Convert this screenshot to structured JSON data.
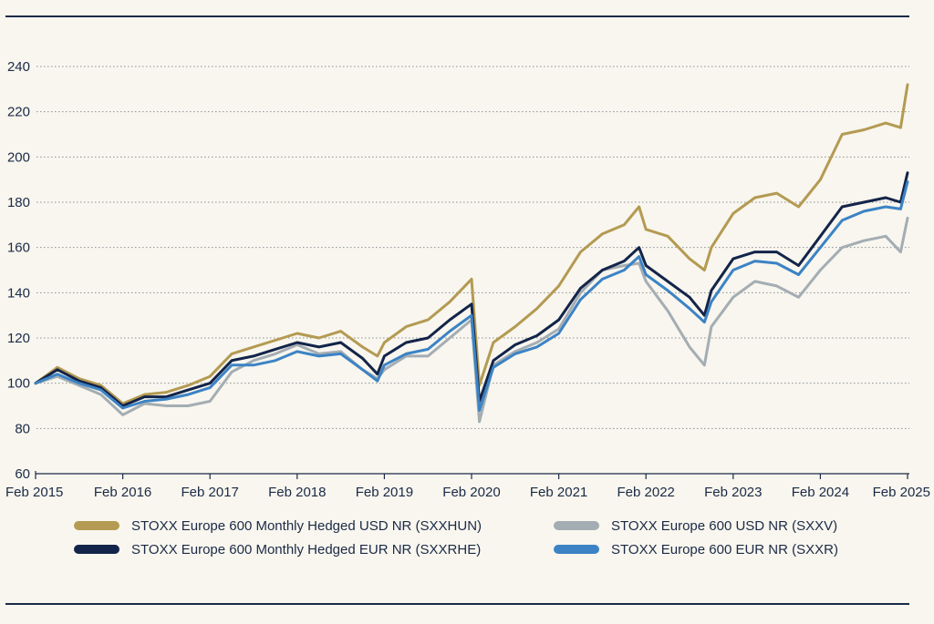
{
  "chart_data": {
    "type": "line",
    "title": "",
    "xlabel": "",
    "ylabel": "",
    "ylim": [
      60,
      240
    ],
    "yticks": [
      60,
      80,
      100,
      120,
      140,
      160,
      180,
      200,
      220,
      240
    ],
    "xticks": [
      "Feb 2015",
      "Feb 2016",
      "Feb 2017",
      "Feb 2018",
      "Feb 2019",
      "Feb 2020",
      "Feb 2021",
      "Feb 2022",
      "Feb 2023",
      "Feb 2024",
      "Feb 2025"
    ],
    "grid": "horizontal dotted",
    "legend_position": "bottom",
    "x": [
      2015.08,
      2015.33,
      2015.58,
      2015.83,
      2016.08,
      2016.33,
      2016.58,
      2016.83,
      2017.08,
      2017.33,
      2017.58,
      2017.83,
      2018.08,
      2018.33,
      2018.58,
      2018.83,
      2019.0,
      2019.08,
      2019.33,
      2019.58,
      2019.83,
      2020.08,
      2020.17,
      2020.33,
      2020.58,
      2020.83,
      2021.08,
      2021.33,
      2021.58,
      2021.83,
      2022.0,
      2022.08,
      2022.33,
      2022.58,
      2022.75,
      2022.83,
      2023.08,
      2023.33,
      2023.58,
      2023.83,
      2024.08,
      2024.33,
      2024.58,
      2024.83,
      2025.0,
      2025.08
    ],
    "series": [
      {
        "name": "STOXX Europe 600 Monthly Hedged USD NR (SXXHUN)",
        "color": "#b49a52",
        "values": [
          100,
          107,
          102,
          99,
          91,
          95,
          96,
          99,
          103,
          113,
          116,
          119,
          122,
          120,
          123,
          116,
          112,
          118,
          125,
          128,
          136,
          146,
          99,
          118,
          125,
          133,
          143,
          158,
          166,
          170,
          178,
          168,
          165,
          155,
          150,
          160,
          175,
          182,
          184,
          178,
          190,
          210,
          212,
          215,
          213,
          232
        ]
      },
      {
        "name": "STOXX Europe 600 USD NR (SXXV)",
        "color": "#a4adb3",
        "values": [
          100,
          103,
          99,
          95,
          86,
          91,
          90,
          90,
          92,
          105,
          110,
          113,
          117,
          113,
          114,
          106,
          102,
          106,
          112,
          112,
          120,
          128,
          83,
          108,
          114,
          118,
          124,
          140,
          150,
          152,
          153,
          145,
          132,
          116,
          108,
          125,
          138,
          145,
          143,
          138,
          150,
          160,
          163,
          165,
          158,
          173
        ]
      },
      {
        "name": "STOXX Europe 600 Monthly Hedged EUR NR (SXXRHE)",
        "color": "#13244a",
        "values": [
          100,
          106,
          101,
          98,
          90,
          94,
          94,
          97,
          100,
          110,
          112,
          115,
          118,
          116,
          118,
          111,
          104,
          112,
          118,
          120,
          128,
          135,
          92,
          110,
          117,
          121,
          128,
          142,
          150,
          154,
          160,
          152,
          145,
          138,
          130,
          141,
          155,
          158,
          158,
          152,
          165,
          178,
          180,
          182,
          180,
          193
        ]
      },
      {
        "name": "STOXX Europe 600 EUR NR (SXXR)",
        "color": "#3c83c5",
        "values": [
          100,
          104,
          100,
          97,
          89,
          92,
          93,
          95,
          98,
          108,
          108,
          110,
          114,
          112,
          113,
          106,
          101,
          108,
          113,
          115,
          123,
          130,
          88,
          107,
          113,
          116,
          122,
          137,
          146,
          150,
          156,
          148,
          141,
          133,
          127,
          136,
          150,
          154,
          153,
          148,
          160,
          172,
          176,
          178,
          177,
          189
        ]
      }
    ]
  },
  "legend": {
    "items": [
      {
        "label": "STOXX Europe 600 Monthly Hedged USD NR (SXXHUN)",
        "color": "#b49a52"
      },
      {
        "label": "STOXX Europe 600 USD NR (SXXV)",
        "color": "#a4adb3"
      },
      {
        "label": "STOXX Europe 600 Monthly Hedged EUR NR (SXXRHE)",
        "color": "#13244a"
      },
      {
        "label": "STOXX Europe 600 EUR NR (SXXR)",
        "color": "#3c83c5"
      }
    ]
  },
  "colors": {
    "background": "#f8f6ee",
    "rule": "#1b2a47",
    "grid": "#8a8f98",
    "text": "#1b2a47"
  }
}
